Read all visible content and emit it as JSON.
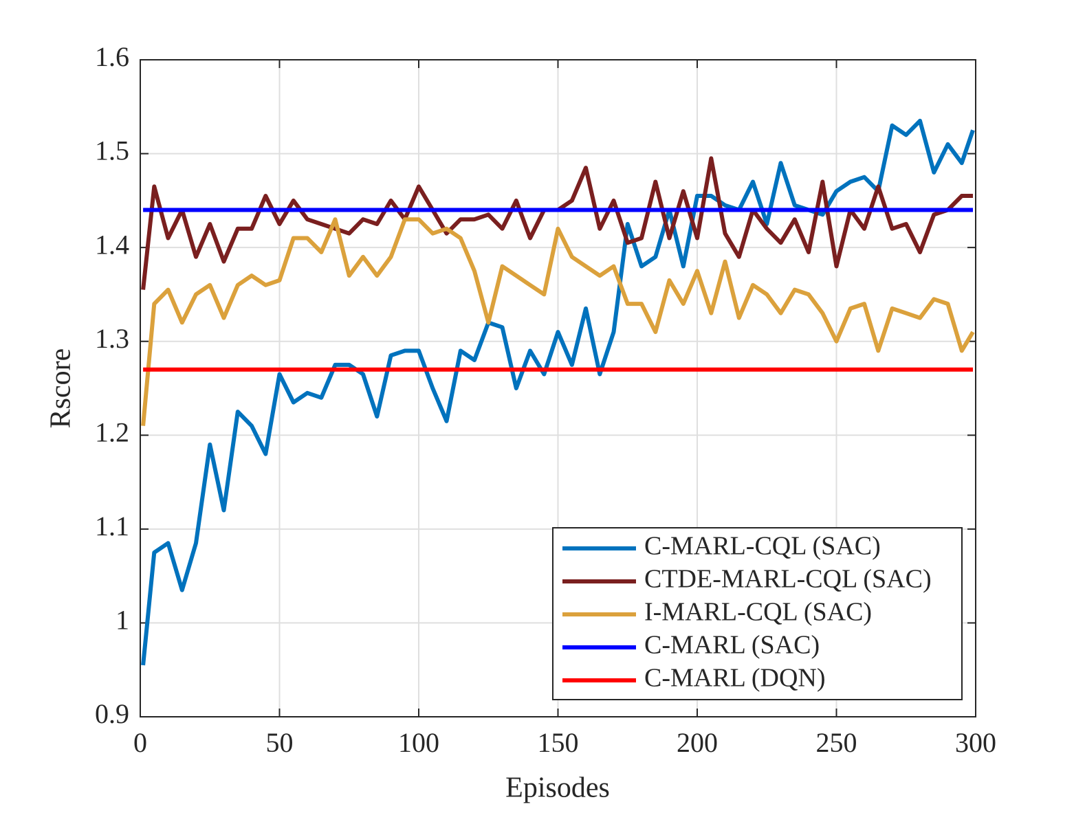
{
  "chart_data": {
    "type": "line",
    "xlabel": "Episodes",
    "ylabel": "Rscore",
    "xlim": [
      0,
      300
    ],
    "xticks": [
      0,
      50,
      100,
      150,
      200,
      250,
      300
    ],
    "ylim": [
      0.9,
      1.6
    ],
    "yticks": [
      0.9,
      1,
      1.1,
      1.2,
      1.3,
      1.4,
      1.5,
      1.6
    ],
    "grid": true,
    "legend": "lower right",
    "x": [
      1,
      5,
      10,
      15,
      20,
      25,
      30,
      35,
      40,
      45,
      50,
      55,
      60,
      65,
      70,
      75,
      80,
      85,
      90,
      95,
      100,
      105,
      110,
      115,
      120,
      125,
      130,
      135,
      140,
      145,
      150,
      155,
      160,
      165,
      170,
      175,
      180,
      185,
      190,
      195,
      200,
      205,
      210,
      215,
      220,
      225,
      230,
      235,
      240,
      245,
      250,
      255,
      260,
      265,
      270,
      275,
      280,
      285,
      290,
      295,
      299
    ],
    "series": [
      {
        "name": "C-MARL-CQL (SAC)",
        "color": "#0072bd",
        "values": [
          0.955,
          1.075,
          1.085,
          1.035,
          1.085,
          1.19,
          1.12,
          1.225,
          1.21,
          1.18,
          1.265,
          1.235,
          1.245,
          1.24,
          1.275,
          1.275,
          1.265,
          1.22,
          1.285,
          1.29,
          1.29,
          1.25,
          1.215,
          1.29,
          1.28,
          1.32,
          1.315,
          1.25,
          1.29,
          1.265,
          1.31,
          1.275,
          1.335,
          1.265,
          1.31,
          1.425,
          1.38,
          1.39,
          1.44,
          1.38,
          1.455,
          1.455,
          1.445,
          1.44,
          1.47,
          1.425,
          1.49,
          1.445,
          1.44,
          1.435,
          1.46,
          1.47,
          1.475,
          1.46,
          1.53,
          1.52,
          1.535,
          1.48,
          1.51,
          1.49,
          1.525
        ]
      },
      {
        "name": "CTDE-MARL-CQL (SAC)",
        "color": "#7a1f1f",
        "values": [
          1.355,
          1.465,
          1.41,
          1.44,
          1.39,
          1.425,
          1.385,
          1.42,
          1.42,
          1.455,
          1.425,
          1.45,
          1.43,
          1.425,
          1.42,
          1.415,
          1.43,
          1.425,
          1.45,
          1.43,
          1.465,
          1.44,
          1.415,
          1.43,
          1.43,
          1.435,
          1.42,
          1.45,
          1.41,
          1.44,
          1.44,
          1.45,
          1.485,
          1.42,
          1.45,
          1.405,
          1.41,
          1.47,
          1.41,
          1.46,
          1.41,
          1.495,
          1.415,
          1.39,
          1.44,
          1.42,
          1.405,
          1.43,
          1.395,
          1.47,
          1.38,
          1.44,
          1.42,
          1.465,
          1.42,
          1.425,
          1.395,
          1.435,
          1.44,
          1.455,
          1.455
        ]
      },
      {
        "name": "I-MARL-CQL (SAC)",
        "color": "#dba13c",
        "values": [
          1.21,
          1.34,
          1.355,
          1.32,
          1.35,
          1.36,
          1.325,
          1.36,
          1.37,
          1.36,
          1.365,
          1.41,
          1.41,
          1.395,
          1.43,
          1.37,
          1.39,
          1.37,
          1.39,
          1.43,
          1.43,
          1.415,
          1.42,
          1.41,
          1.375,
          1.32,
          1.38,
          1.37,
          1.36,
          1.35,
          1.42,
          1.39,
          1.38,
          1.37,
          1.38,
          1.34,
          1.34,
          1.31,
          1.365,
          1.34,
          1.375,
          1.33,
          1.385,
          1.325,
          1.36,
          1.35,
          1.33,
          1.355,
          1.35,
          1.33,
          1.3,
          1.335,
          1.34,
          1.29,
          1.335,
          1.33,
          1.325,
          1.345,
          1.34,
          1.29,
          1.31
        ]
      },
      {
        "name": "C-MARL (SAC)",
        "color": "#0000ff",
        "x": [
          1,
          299
        ],
        "values": [
          1.44,
          1.44
        ]
      },
      {
        "name": "C-MARL (DQN)",
        "color": "#ff0000",
        "x": [
          1,
          299
        ],
        "values": [
          1.27,
          1.27
        ]
      }
    ]
  }
}
